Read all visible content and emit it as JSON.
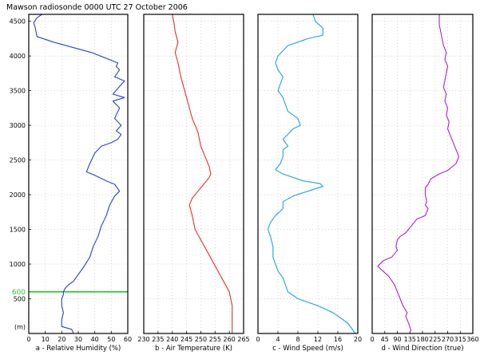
{
  "figure": {
    "title": "Mawson radiosonde 0000 UTC 27 October 2006"
  },
  "y_axis": {
    "ticks": [
      500,
      1000,
      1500,
      2000,
      2500,
      3000,
      3500,
      4000,
      4500
    ],
    "tick_labels": [
      "500",
      "1000",
      "1500",
      "2000",
      "2500",
      "3000",
      "3500",
      "4000",
      "4500"
    ],
    "bottom_label": "(m)",
    "range": [
      0,
      4600
    ]
  },
  "annotations": {
    "line_600": {
      "y": 600,
      "label": "600",
      "color": "#22cc22"
    }
  },
  "chart_data": [
    {
      "type": "line",
      "xlabel": "a - Relative Humidity (%)",
      "xlim": [
        0,
        60
      ],
      "xticks": [
        0,
        10,
        20,
        30,
        40,
        50,
        60
      ],
      "xtick_labels": [
        "0",
        "10",
        "20",
        "30",
        "40",
        "50",
        "60"
      ],
      "color": "#2a3fd9",
      "series": [
        {
          "points": [
            [
              27,
              10
            ],
            [
              26,
              60
            ],
            [
              20,
              100
            ],
            [
              20,
              150
            ],
            [
              20,
              200
            ],
            [
              21,
              300
            ],
            [
              20,
              400
            ],
            [
              20,
              500
            ],
            [
              21,
              560
            ],
            [
              21,
              600
            ],
            [
              22,
              650
            ],
            [
              24,
              700
            ],
            [
              27,
              750
            ],
            [
              30,
              850
            ],
            [
              33,
              950
            ],
            [
              37,
              1100
            ],
            [
              39,
              1250
            ],
            [
              42,
              1400
            ],
            [
              44,
              1550
            ],
            [
              47,
              1700
            ],
            [
              49,
              1850
            ],
            [
              52,
              1980
            ],
            [
              55,
              2050
            ],
            [
              52,
              2150
            ],
            [
              47,
              2200
            ],
            [
              40,
              2280
            ],
            [
              35,
              2330
            ],
            [
              37,
              2450
            ],
            [
              40,
              2600
            ],
            [
              44,
              2700
            ],
            [
              50,
              2750
            ],
            [
              54,
              2800
            ],
            [
              56,
              2870
            ],
            [
              53,
              2920
            ],
            [
              56,
              3000
            ],
            [
              52,
              3100
            ],
            [
              55,
              3250
            ],
            [
              51,
              3350
            ],
            [
              58,
              3400
            ],
            [
              51,
              3450
            ],
            [
              55,
              3560
            ],
            [
              58,
              3640
            ],
            [
              52,
              3700
            ],
            [
              55,
              3800
            ],
            [
              53,
              3850
            ],
            [
              54,
              3900
            ],
            [
              38,
              4050
            ],
            [
              15,
              4200
            ],
            [
              5,
              4280
            ],
            [
              4,
              4400
            ],
            [
              3,
              4480
            ],
            [
              5,
              4550
            ],
            [
              8,
              4600
            ]
          ]
        }
      ]
    },
    {
      "type": "line",
      "xlabel": "b - Air Temperature (K)",
      "xlim": [
        230,
        265
      ],
      "xticks": [
        230,
        235,
        240,
        245,
        250,
        255,
        260,
        265
      ],
      "xtick_labels": [
        "230",
        "235",
        "240",
        "245",
        "250",
        "255",
        "260",
        "265"
      ],
      "color": "#e23030",
      "series": [
        {
          "points": [
            [
              261,
              0
            ],
            [
              261,
              200
            ],
            [
              261,
              400
            ],
            [
              260,
              600
            ],
            [
              258,
              750
            ],
            [
              256,
              900
            ],
            [
              254,
              1050
            ],
            [
              252,
              1200
            ],
            [
              250,
              1350
            ],
            [
              248,
              1500
            ],
            [
              247,
              1700
            ],
            [
              246,
              1850
            ],
            [
              247,
              1950
            ],
            [
              249,
              2050
            ],
            [
              251,
              2150
            ],
            [
              253,
              2250
            ],
            [
              253.5,
              2300
            ],
            [
              253,
              2400
            ],
            [
              252,
              2500
            ],
            [
              250,
              2700
            ],
            [
              249,
              2900
            ],
            [
              247,
              3100
            ],
            [
              245,
              3400
            ],
            [
              243,
              3700
            ],
            [
              242,
              3900
            ],
            [
              241,
              4050
            ],
            [
              242,
              4200
            ],
            [
              241,
              4350
            ],
            [
              240.5,
              4500
            ],
            [
              240,
              4600
            ]
          ]
        }
      ]
    },
    {
      "type": "line",
      "xlabel": "c - Wind Speed (m/s)",
      "xlim": [
        0,
        20
      ],
      "xticks": [
        0,
        4,
        8,
        12,
        16,
        20
      ],
      "xtick_labels": [
        "0",
        "4",
        "8",
        "12",
        "16",
        "20"
      ],
      "color": "#1aa3df",
      "series": [
        {
          "points": [
            [
              19.5,
              0
            ],
            [
              18,
              150
            ],
            [
              15,
              300
            ],
            [
              12,
              400
            ],
            [
              8,
              500
            ],
            [
              6,
              600
            ],
            [
              5.5,
              700
            ],
            [
              5,
              800
            ],
            [
              4,
              900
            ],
            [
              3.5,
              1000
            ],
            [
              3,
              1100
            ],
            [
              3,
              1250
            ],
            [
              2.5,
              1400
            ],
            [
              2,
              1500
            ],
            [
              2.5,
              1600
            ],
            [
              3.5,
              1700
            ],
            [
              5,
              1800
            ],
            [
              5,
              1900
            ],
            [
              7,
              1980
            ],
            [
              10,
              2050
            ],
            [
              13,
              2120
            ],
            [
              12.5,
              2160
            ],
            [
              9,
              2200
            ],
            [
              5,
              2300
            ],
            [
              3.5,
              2360
            ],
            [
              4.5,
              2450
            ],
            [
              5,
              2550
            ],
            [
              5,
              2650
            ],
            [
              6,
              2700
            ],
            [
              5,
              2800
            ],
            [
              6,
              2870
            ],
            [
              7,
              2950
            ],
            [
              8.5,
              3000
            ],
            [
              8,
              3100
            ],
            [
              7,
              3150
            ],
            [
              6,
              3200
            ],
            [
              5.5,
              3300
            ],
            [
              5,
              3400
            ],
            [
              4,
              3500
            ],
            [
              4.5,
              3600
            ],
            [
              5,
              3700
            ],
            [
              4,
              3800
            ],
            [
              3.5,
              3900
            ],
            [
              4,
              4000
            ],
            [
              6,
              4150
            ],
            [
              10,
              4250
            ],
            [
              13,
              4300
            ],
            [
              13,
              4400
            ],
            [
              11.5,
              4500
            ],
            [
              11,
              4600
            ]
          ]
        }
      ]
    },
    {
      "type": "line",
      "xlabel": "d - Wind Direction (true)",
      "xlim": [
        0,
        360
      ],
      "xticks": [
        0,
        45,
        90,
        135,
        180,
        225,
        270,
        315,
        360
      ],
      "xtick_labels": [
        "0",
        "45",
        "90",
        "135",
        "180",
        "225",
        "270",
        "315",
        "360"
      ],
      "color": "#aa22cc",
      "series": [
        {
          "points": [
            [
              140,
              30
            ],
            [
              130,
              150
            ],
            [
              120,
              250
            ],
            [
              125,
              300
            ],
            [
              110,
              400
            ],
            [
              100,
              500
            ],
            [
              90,
              600
            ],
            [
              80,
              700
            ],
            [
              60,
              820
            ],
            [
              20,
              970
            ],
            [
              40,
              1050
            ],
            [
              70,
              1100
            ],
            [
              90,
              1200
            ],
            [
              85,
              1250
            ],
            [
              90,
              1350
            ],
            [
              100,
              1400
            ],
            [
              120,
              1450
            ],
            [
              140,
              1550
            ],
            [
              160,
              1650
            ],
            [
              190,
              1700
            ],
            [
              200,
              1800
            ],
            [
              190,
              1850
            ],
            [
              195,
              1900
            ],
            [
              190,
              2000
            ],
            [
              190,
              2100
            ],
            [
              200,
              2150
            ],
            [
              210,
              2230
            ],
            [
              240,
              2300
            ],
            [
              270,
              2350
            ],
            [
              300,
              2450
            ],
            [
              310,
              2550
            ],
            [
              300,
              2650
            ],
            [
              290,
              2750
            ],
            [
              280,
              2850
            ],
            [
              270,
              2950
            ],
            [
              275,
              3050
            ],
            [
              265,
              3150
            ],
            [
              270,
              3250
            ],
            [
              260,
              3350
            ],
            [
              265,
              3450
            ],
            [
              255,
              3550
            ],
            [
              260,
              3650
            ],
            [
              265,
              3750
            ],
            [
              270,
              3850
            ],
            [
              260,
              3950
            ],
            [
              265,
              4050
            ],
            [
              255,
              4150
            ],
            [
              250,
              4250
            ],
            [
              245,
              4350
            ],
            [
              240,
              4450
            ],
            [
              240,
              4600
            ]
          ]
        }
      ]
    }
  ]
}
